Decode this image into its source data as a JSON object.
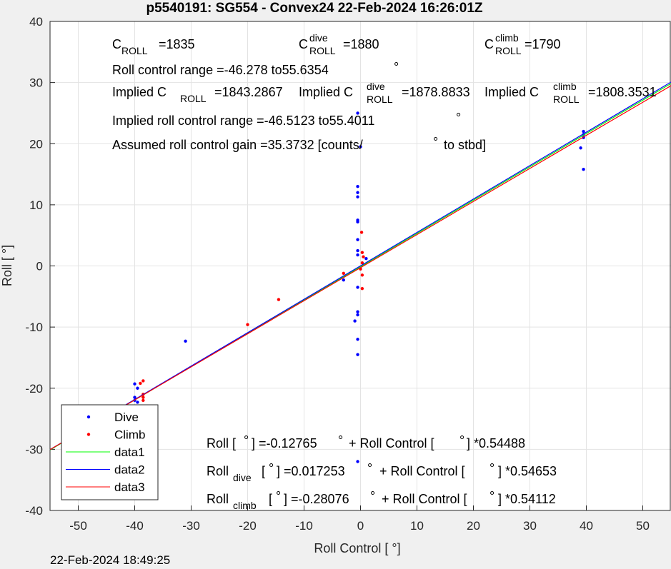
{
  "chart_data": {
    "type": "scatter",
    "title": "p5540191: SG554 - Convex24 22-Feb-2024 16:26:01Z",
    "xlabel": "Roll Control [ °]",
    "ylabel": "Roll [ °]",
    "footer": "22-Feb-2024 18:49:25",
    "xlim": [
      -55,
      55
    ],
    "ylim": [
      -40,
      40
    ],
    "xticks": [
      -50,
      -40,
      -30,
      -20,
      -10,
      0,
      10,
      20,
      30,
      40,
      50
    ],
    "yticks": [
      -40,
      -30,
      -20,
      -10,
      0,
      10,
      20,
      30,
      40
    ],
    "grid": true,
    "legend": "southwest",
    "series": [
      {
        "name": "Dive",
        "type": "scatter",
        "color": "#0000ff",
        "x": [
          -40,
          -39.5,
          -40,
          -40,
          -39.5,
          -31,
          -3,
          -0.5,
          -0.5,
          -0.5,
          -0.5,
          -0.5,
          -0.5,
          -0.5,
          -0.5,
          -0.5,
          -0.5,
          -0.5,
          -0.5,
          -0.5,
          -0.5,
          -1,
          -0.5,
          39.5,
          39.5,
          39.5,
          39,
          39.5,
          0,
          1
        ],
        "values": [
          -19.3,
          -20,
          -21.5,
          -22,
          -22.3,
          -12.3,
          -2.3,
          25,
          13,
          12,
          11.3,
          7.5,
          7.2,
          4.3,
          2.5,
          1.8,
          -3.5,
          -7.5,
          -8,
          -12,
          -14.5,
          -9,
          -32,
          22,
          21.5,
          21,
          19.3,
          15.8,
          19.5,
          1.2
        ]
      },
      {
        "name": "Climb",
        "type": "scatter",
        "color": "#ff0000",
        "x": [
          -38.5,
          -39,
          -38.5,
          -38.5,
          -38.5,
          -20,
          -14.5,
          -3,
          0.2,
          0.3,
          0.3,
          0.3,
          0.3,
          0,
          0.5
        ],
        "values": [
          -18.8,
          -19.2,
          -21,
          -22,
          -21.5,
          -9.6,
          -5.5,
          -1.2,
          5.5,
          2.2,
          0.5,
          -1.5,
          -3.7,
          -0.5,
          1.5
        ]
      },
      {
        "name": "data1",
        "type": "line",
        "color": "#00ff00",
        "x": [
          -55,
          55
        ],
        "values": [
          -30.096,
          29.841
        ]
      },
      {
        "name": "data2",
        "type": "line",
        "color": "#0000ff",
        "x": [
          -55,
          55
        ],
        "values": [
          -30.042,
          30.076
        ]
      },
      {
        "name": "data3",
        "type": "line",
        "color": "#ff0000",
        "x": [
          -55,
          55
        ],
        "values": [
          -30.042,
          29.481
        ]
      }
    ],
    "annotations": [
      [
        "C",
        "ROLL",
        "=1835"
      ],
      [
        "C",
        "dive",
        "ROLL",
        "=1880"
      ],
      [
        "C",
        "climb",
        "ROLL",
        "=1790"
      ],
      [
        "Roll control range =-46.278 to55.6354",
        "°"
      ],
      [
        "Implied C",
        "ROLL",
        "=1843.2867"
      ],
      [
        "Implied C",
        "dive",
        "ROLL",
        "=1878.8833"
      ],
      [
        "Implied C",
        "climb",
        "ROLL",
        "=1808.3531"
      ],
      [
        "Implied roll control range =-46.5123 to55.4011",
        "°"
      ],
      [
        "Assumed roll control gain =35.3732 [counts/",
        "°",
        "to stbd]"
      ],
      [
        "Roll [",
        "°",
        "] =-0.12765",
        "°",
        "+ Roll Control [",
        "°",
        "] *0.54488"
      ],
      [
        "Roll",
        "dive",
        "[",
        "°",
        "] =0.017253",
        "°",
        "+ Roll Control [",
        "°",
        "] *0.54653"
      ],
      [
        "Roll",
        "climb",
        "[",
        "°",
        "] =-0.28076",
        "°",
        "+ Roll Control [",
        "°",
        "] *0.54112"
      ]
    ]
  }
}
